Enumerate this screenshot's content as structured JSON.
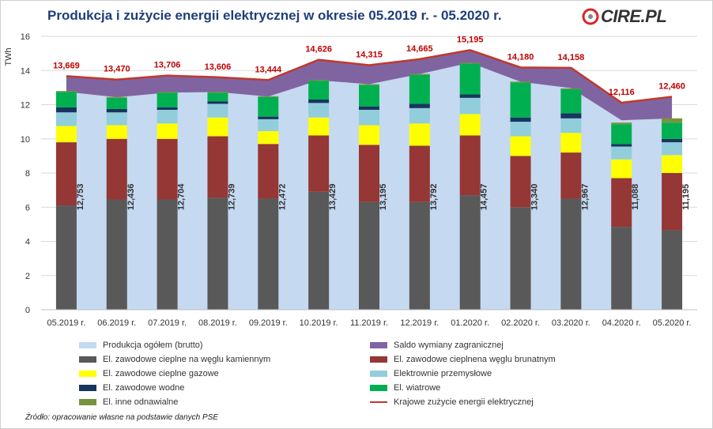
{
  "title": "Produkcja i zużycie energii elektrycznej w okresie 05.2019 r. - 05.2020 r.",
  "logo": {
    "text": "CIRE.PL",
    "icon": "cire-logo-icon",
    "colors": [
      "#d9262b",
      "#888888"
    ]
  },
  "source": "Źródło: opracowanie własne na podstawie danych PSE",
  "chart_data": {
    "type": "bar",
    "stacked": true,
    "ylabel": "TWh",
    "xlabel": "",
    "ylim": [
      0,
      16
    ],
    "yticks": [
      "0",
      "2",
      "4",
      "6",
      "8",
      "10",
      "12",
      "14",
      "16"
    ],
    "grid": true,
    "legend_position": "bottom",
    "categories": [
      "05.2019 r.",
      "06.2019 r.",
      "07.2019 r.",
      "08.2019 r.",
      "09.2019 r.",
      "10.2019 r.",
      "11.2019 r.",
      "12.2019 r.",
      "01.2020 r.",
      "02.2020 r.",
      "03.2020 r.",
      "04.2020 r.",
      "05.2020 r."
    ],
    "production_total": {
      "name": "Produkcja ogółem (brutto)",
      "color": "#c5d9f1",
      "values": [
        12.753,
        12.436,
        12.704,
        12.739,
        12.472,
        13.429,
        13.195,
        13.792,
        14.457,
        13.34,
        12.967,
        11.088,
        11.195
      ],
      "labels": [
        "12,753",
        "12,436",
        "12,704",
        "12,739",
        "12,472",
        "13,429",
        "13,195",
        "13,792",
        "14,457",
        "13,340",
        "12,967",
        "11,088",
        "11,195"
      ]
    },
    "consumption": {
      "name": "Krajowe zużycie energii elektrycznej",
      "color": "#c0392b",
      "values": [
        13.669,
        13.47,
        13.706,
        13.606,
        13.444,
        14.626,
        14.315,
        14.665,
        15.195,
        14.18,
        14.158,
        12.116,
        12.46
      ],
      "labels": [
        "13,669",
        "13,470",
        "13,706",
        "13,606",
        "13,444",
        "14,626",
        "14,315",
        "14,665",
        "15,195",
        "14,180",
        "14,158",
        "12,116",
        "12,460"
      ]
    },
    "exchange_band": {
      "name": "Saldo wymiany zagranicznej",
      "color": "#8064a2"
    },
    "series": [
      {
        "name": "El. zawodowe cieplne na węglu kamiennym",
        "color": "#595959",
        "values": [
          6.1,
          6.45,
          6.45,
          6.55,
          6.5,
          6.9,
          6.3,
          6.3,
          6.7,
          6.0,
          6.5,
          4.85,
          4.65
        ]
      },
      {
        "name": "El. zawodowe cieplnena węglu brunatnym",
        "color": "#953735",
        "values": [
          3.7,
          3.55,
          3.55,
          3.6,
          3.2,
          3.3,
          3.35,
          3.3,
          3.5,
          3.0,
          2.7,
          2.85,
          3.35
        ]
      },
      {
        "name": "El. zawodowe cieplne gazowe",
        "color": "#ffff00",
        "values": [
          0.95,
          0.8,
          0.9,
          1.1,
          0.75,
          1.05,
          1.15,
          1.3,
          1.25,
          1.15,
          1.15,
          1.1,
          1.05
        ]
      },
      {
        "name": "Elektrownie przemysłowe",
        "color": "#92cddc",
        "values": [
          0.8,
          0.75,
          0.8,
          0.8,
          0.7,
          0.85,
          0.9,
          0.9,
          0.95,
          0.85,
          0.85,
          0.75,
          0.75
        ]
      },
      {
        "name": "El. zawodowe wodne",
        "color": "#17365d",
        "values": [
          0.3,
          0.2,
          0.15,
          0.15,
          0.15,
          0.2,
          0.2,
          0.25,
          0.2,
          0.25,
          0.3,
          0.15,
          0.2
        ]
      },
      {
        "name": "El. wiatrowe",
        "color": "#00b050",
        "values": [
          0.9,
          0.65,
          0.85,
          0.5,
          1.15,
          1.1,
          1.25,
          1.7,
          1.8,
          2.05,
          1.4,
          1.15,
          0.95
        ]
      },
      {
        "name": "El. inne odnawialne",
        "color": "#77933c",
        "values": [
          0.05,
          0.05,
          0.05,
          0.05,
          0.05,
          0.05,
          0.05,
          0.05,
          0.05,
          0.05,
          0.05,
          0.1,
          0.25
        ]
      }
    ],
    "legend": [
      {
        "name": "Produkcja ogółem (brutto)",
        "color": "#c5d9f1",
        "kind": "box"
      },
      {
        "name": "Saldo wymiany zagranicznej",
        "color": "#8064a2",
        "kind": "box"
      },
      {
        "name": "El. zawodowe cieplne na węglu kamiennym",
        "color": "#595959",
        "kind": "box"
      },
      {
        "name": "El. zawodowe cieplnena węglu brunatnym",
        "color": "#953735",
        "kind": "box"
      },
      {
        "name": "El. zawodowe cieplne gazowe",
        "color": "#ffff00",
        "kind": "box"
      },
      {
        "name": "Elektrownie przemysłowe",
        "color": "#92cddc",
        "kind": "box"
      },
      {
        "name": "El. zawodowe wodne",
        "color": "#17365d",
        "kind": "box"
      },
      {
        "name": "El. wiatrowe",
        "color": "#00b050",
        "kind": "box"
      },
      {
        "name": "El. inne odnawialne",
        "color": "#77933c",
        "kind": "box"
      },
      {
        "name": "Krajowe zużycie energii elektrycznej",
        "color": "#c0392b",
        "kind": "line"
      }
    ]
  }
}
